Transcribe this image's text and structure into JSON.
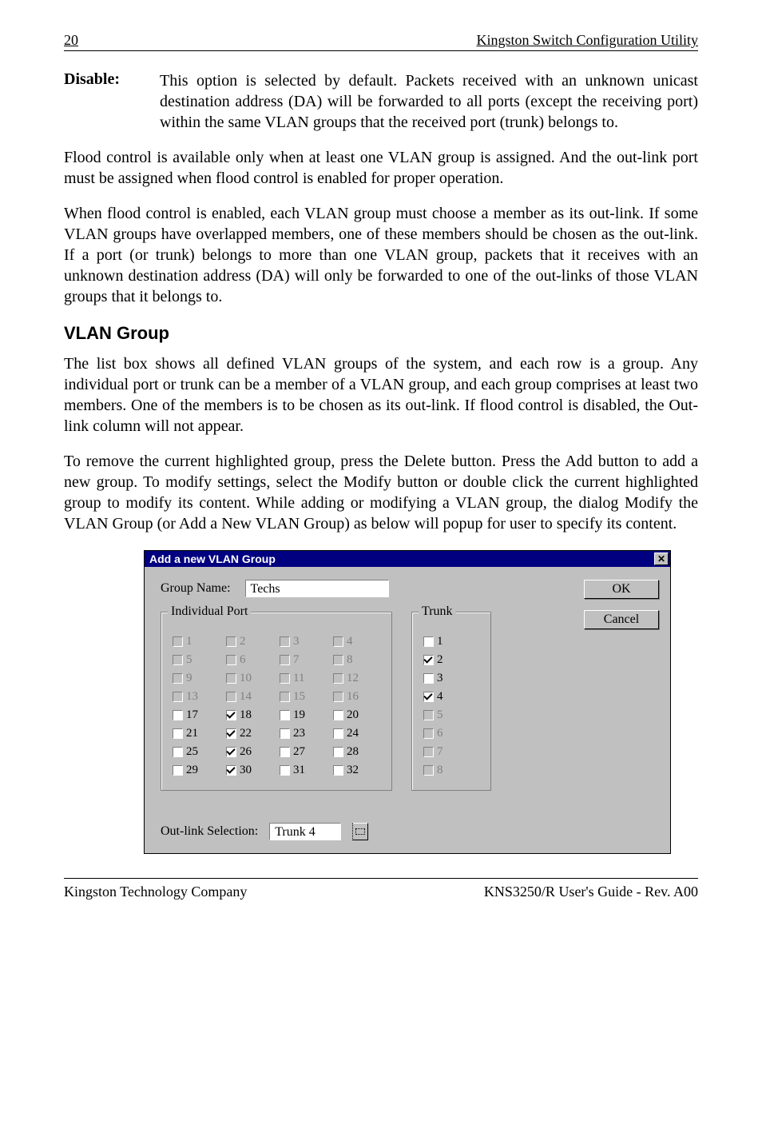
{
  "header": {
    "page_num": "20",
    "title": "Kingston Switch Configuration Utility"
  },
  "def": {
    "term": "Disable:",
    "desc": "This option is selected by default. Packets received with an unknown unicast destination address (DA) will be forwarded to all ports (except the receiving port) within the same VLAN groups that the received port (trunk) belongs to."
  },
  "para1": "Flood control is available only when at least one VLAN group is assigned. And the out-link port must be assigned when flood control is enabled for proper operation.",
  "para2": "When flood control is enabled, each VLAN group must choose a member as its out-link. If some VLAN groups have overlapped members, one of these members should be chosen as the out-link. If a port (or trunk) belongs to more than one VLAN group, packets that it receives with an unknown destination address (DA) will only be forwarded to one of the out-links of those VLAN groups that it belongs to.",
  "section_h": "VLAN Group",
  "para3": "The list box shows all defined VLAN groups of the system, and each row is a group. Any individual port or trunk can be a member of a VLAN group, and each group comprises at least two members. One of the members is to be chosen as its out-link. If flood control is disabled, the Out-link column will not appear.",
  "para4": "To remove the current highlighted group, press the Delete button. Press the Add button to add a new group. To modify settings, select the Modify button or double click the current highlighted group to modify its content. While adding or modifying a VLAN group, the dialog Modify the VLAN Group (or Add a New VLAN Group) as below will popup for user to specify its content.",
  "dialog": {
    "title": "Add a new VLAN Group",
    "group_name_label": "Group Name:",
    "group_name_value": "Techs",
    "ind_legend": "Individual Port",
    "trunk_legend": "Trunk",
    "ok_label": "OK",
    "cancel_label": "Cancel",
    "outlink_label": "Out-link Selection:",
    "outlink_value": "Trunk 4",
    "ports": [
      {
        "n": "1",
        "d": true,
        "c": false
      },
      {
        "n": "2",
        "d": true,
        "c": false
      },
      {
        "n": "3",
        "d": true,
        "c": false
      },
      {
        "n": "4",
        "d": true,
        "c": false
      },
      {
        "n": "5",
        "d": true,
        "c": false
      },
      {
        "n": "6",
        "d": true,
        "c": false
      },
      {
        "n": "7",
        "d": true,
        "c": false
      },
      {
        "n": "8",
        "d": true,
        "c": false
      },
      {
        "n": "9",
        "d": true,
        "c": false
      },
      {
        "n": "10",
        "d": true,
        "c": false
      },
      {
        "n": "11",
        "d": true,
        "c": false
      },
      {
        "n": "12",
        "d": true,
        "c": false
      },
      {
        "n": "13",
        "d": true,
        "c": false
      },
      {
        "n": "14",
        "d": true,
        "c": false
      },
      {
        "n": "15",
        "d": true,
        "c": false
      },
      {
        "n": "16",
        "d": true,
        "c": false
      },
      {
        "n": "17",
        "d": false,
        "c": false
      },
      {
        "n": "18",
        "d": false,
        "c": true
      },
      {
        "n": "19",
        "d": false,
        "c": false
      },
      {
        "n": "20",
        "d": false,
        "c": false
      },
      {
        "n": "21",
        "d": false,
        "c": false
      },
      {
        "n": "22",
        "d": false,
        "c": true
      },
      {
        "n": "23",
        "d": false,
        "c": false
      },
      {
        "n": "24",
        "d": false,
        "c": false
      },
      {
        "n": "25",
        "d": false,
        "c": false
      },
      {
        "n": "26",
        "d": false,
        "c": true
      },
      {
        "n": "27",
        "d": false,
        "c": false
      },
      {
        "n": "28",
        "d": false,
        "c": false
      },
      {
        "n": "29",
        "d": false,
        "c": false
      },
      {
        "n": "30",
        "d": false,
        "c": true
      },
      {
        "n": "31",
        "d": false,
        "c": false
      },
      {
        "n": "32",
        "d": false,
        "c": false
      }
    ],
    "trunks": [
      {
        "n": "1",
        "d": false,
        "c": false
      },
      {
        "n": "2",
        "d": false,
        "c": true
      },
      {
        "n": "3",
        "d": false,
        "c": false
      },
      {
        "n": "4",
        "d": false,
        "c": true
      },
      {
        "n": "5",
        "d": true,
        "c": false
      },
      {
        "n": "6",
        "d": true,
        "c": false
      },
      {
        "n": "7",
        "d": true,
        "c": false
      },
      {
        "n": "8",
        "d": true,
        "c": false
      }
    ]
  },
  "footer": {
    "left": "Kingston Technology Company",
    "right": "KNS3250/R User's Guide - Rev. A00"
  }
}
